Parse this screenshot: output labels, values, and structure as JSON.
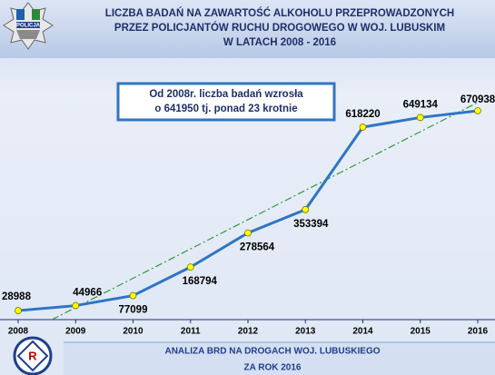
{
  "logo_text": "POLICJA",
  "chart_data": {
    "type": "line",
    "title_lines": [
      "LICZBA BADAŃ NA ZAWARTOŚĆ ALKOHOLU PRZEPROWADZONYCH",
      "PRZEZ POLICJANTÓW RUCHU DROGOWEGO W WOJ. LUBUSKIM",
      "W LATACH 2008 - 2016"
    ],
    "annotation_lines": [
      "Od 2008r. liczba badań wzrosła",
      "o 641950 tj. ponad 23 krotnie"
    ],
    "categories": [
      "2008",
      "2009",
      "2010",
      "2011",
      "2012",
      "2013",
      "2014",
      "2015",
      "2016"
    ],
    "values": [
      28988,
      44966,
      77099,
      168794,
      278564,
      353394,
      618220,
      649134,
      670938
    ],
    "color": "#2e75c4",
    "marker_color": "#ffff00",
    "trendline": true,
    "trendline_color": "#2e9b3a",
    "ylim": [
      0,
      700000
    ]
  },
  "footer_lines": [
    "ANALIZA BRD NA DROGACH WOJ. LUBUSKIEGO",
    "ZA ROK 2016"
  ]
}
